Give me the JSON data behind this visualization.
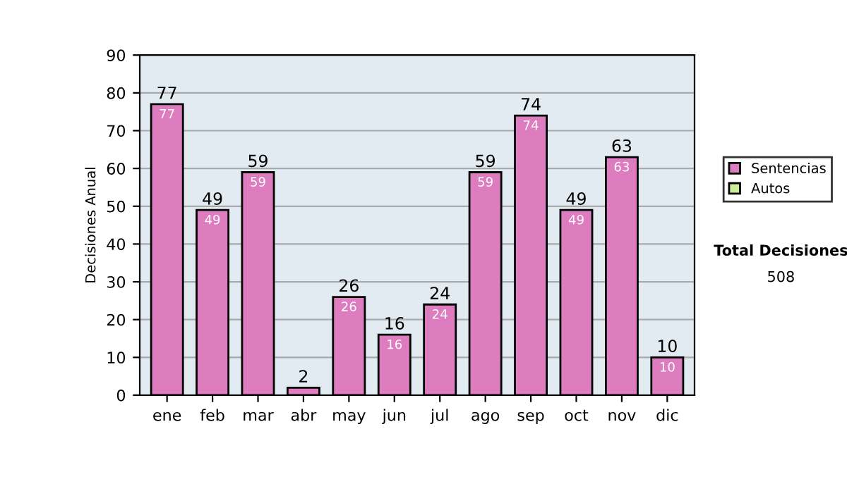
{
  "chart_data": {
    "type": "bar",
    "stacked": true,
    "ylabel": "Decisiones Anual",
    "categories": [
      "ene",
      "feb",
      "mar",
      "abr",
      "may",
      "jun",
      "jul",
      "ago",
      "sep",
      "oct",
      "nov",
      "dic"
    ],
    "series": [
      {
        "name": "Sentencias",
        "color": "#de7cc0",
        "values": [
          77,
          49,
          59,
          2,
          26,
          16,
          24,
          59,
          74,
          49,
          63,
          10
        ],
        "value_labels": [
          "77",
          "49",
          "59",
          null,
          "26",
          "16",
          "24",
          "59",
          "74",
          "49",
          "63",
          "10"
        ]
      },
      {
        "name": "Autos",
        "color": "#ccee99",
        "values": [
          null,
          null,
          null,
          null,
          null,
          null,
          null,
          null,
          null,
          null,
          null,
          null
        ]
      }
    ],
    "totals": [
      "77",
      "49",
      "59",
      "2",
      "26",
      "16",
      "24",
      "59",
      "74",
      "49",
      "63",
      "10"
    ],
    "ylim": [
      0,
      90
    ],
    "yticks": [
      0,
      10,
      20,
      30,
      40,
      50,
      60,
      70,
      80,
      90
    ],
    "grid": "y",
    "legend": "right",
    "annotations": [
      "Total Decisiones",
      "508"
    ]
  }
}
